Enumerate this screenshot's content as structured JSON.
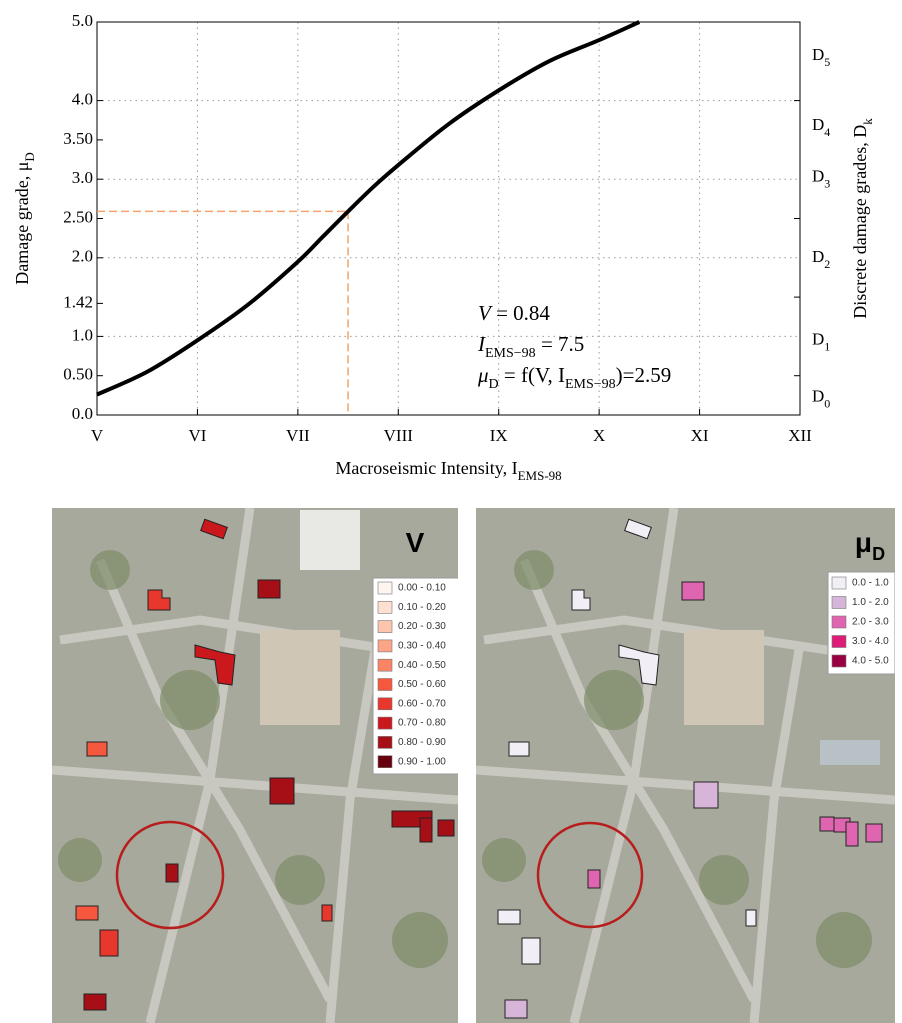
{
  "chart_data": {
    "type": "line",
    "x_label": {
      "text": "Macroseismic Intensity, I",
      "sub": "EMS-98"
    },
    "y_label": {
      "text": "Damage grade, μ",
      "sub": "D"
    },
    "y2_label": {
      "text": "Discrete damage grades, D",
      "sub": "k"
    },
    "xlim": [
      5,
      12
    ],
    "ylim": [
      0,
      5
    ],
    "xticks": [
      {
        "value": 5,
        "label": "V"
      },
      {
        "value": 6,
        "label": "VI"
      },
      {
        "value": 7,
        "label": "VII"
      },
      {
        "value": 8,
        "label": "VIII"
      },
      {
        "value": 9,
        "label": "IX"
      },
      {
        "value": 10,
        "label": "X"
      },
      {
        "value": 11,
        "label": "XI"
      },
      {
        "value": 12,
        "label": "XII"
      }
    ],
    "yticks": [
      {
        "value": 0,
        "label": "0.0"
      },
      {
        "value": 0.5,
        "label": "0.50"
      },
      {
        "value": 1,
        "label": "1.0"
      },
      1.42,
      {
        "value": 2,
        "label": "2.0"
      },
      {
        "value": 2.5,
        "label": "2.50"
      },
      {
        "value": 3,
        "label": "3.0"
      },
      {
        "value": 3.5,
        "label": "3.50"
      },
      {
        "value": 4,
        "label": "4.0"
      },
      {
        "value": 5,
        "label": "5.0"
      }
    ],
    "y2ticks": [
      0.5,
      1.5,
      2.5,
      4
    ],
    "y2labels": [
      {
        "value": 0.22,
        "label": "D",
        "sub": "0"
      },
      {
        "value": 0.95,
        "label": "D",
        "sub": "1"
      },
      {
        "value": 2,
        "label": "D",
        "sub": "2"
      },
      {
        "value": 3.02,
        "label": "D",
        "sub": "3"
      },
      {
        "value": 3.68,
        "label": "D",
        "sub": "4"
      },
      {
        "value": 4.57,
        "label": "D",
        "sub": "5"
      }
    ],
    "grid": true,
    "series": [
      {
        "color": "#000000",
        "x": [
          5,
          5.5,
          6,
          6.5,
          7,
          7.25,
          7.5,
          7.75,
          8,
          8.5,
          9,
          9.5,
          10,
          10.4
        ],
        "values": [
          0.26,
          0.55,
          0.95,
          1.4,
          1.95,
          2.27,
          2.59,
          2.9,
          3.18,
          3.7,
          4.13,
          4.5,
          4.77,
          5.0
        ]
      }
    ],
    "highlight": {
      "x": 7.5,
      "y": 2.59,
      "color": "#f4a36b"
    },
    "annotation": [
      {
        "main": "V",
        "rest": " = 0.84"
      },
      {
        "main": "I",
        "sub": "EMS−98",
        "rest": " = 7.5"
      },
      {
        "main": "μ",
        "sub": "D",
        "rest": " = f(V, I",
        "sub2": "EMS−98",
        "rest2": ")=2.59"
      }
    ]
  },
  "maps": [
    {
      "title": "V",
      "legend": [
        {
          "label": "0.00 - 0.10",
          "color": "#fff5f0"
        },
        {
          "label": "0.10 - 0.20",
          "color": "#fee0d2"
        },
        {
          "label": "0.20 - 0.30",
          "color": "#fcc5ac"
        },
        {
          "label": "0.30 - 0.40",
          "color": "#fca486"
        },
        {
          "label": "0.40 - 0.50",
          "color": "#fb8464"
        },
        {
          "label": "0.50 - 0.60",
          "color": "#f6583e"
        },
        {
          "label": "0.60 - 0.70",
          "color": "#e8372c"
        },
        {
          "label": "0.70 - 0.80",
          "color": "#cb181d"
        },
        {
          "label": "0.80 - 0.90",
          "color": "#a50f15"
        },
        {
          "label": "0.90 - 1.00",
          "color": "#67000d"
        }
      ]
    },
    {
      "title": "μ",
      "title_sub": "D",
      "legend": [
        {
          "label": "0.0 - 1.0",
          "color": "#f1eef6"
        },
        {
          "label": "1.0 - 2.0",
          "color": "#d7b5d8"
        },
        {
          "label": "2.0 - 3.0",
          "color": "#df65b0"
        },
        {
          "label": "3.0 - 4.0",
          "color": "#dd1c77"
        },
        {
          "label": "4.0 - 5.0",
          "color": "#980043"
        }
      ]
    }
  ]
}
